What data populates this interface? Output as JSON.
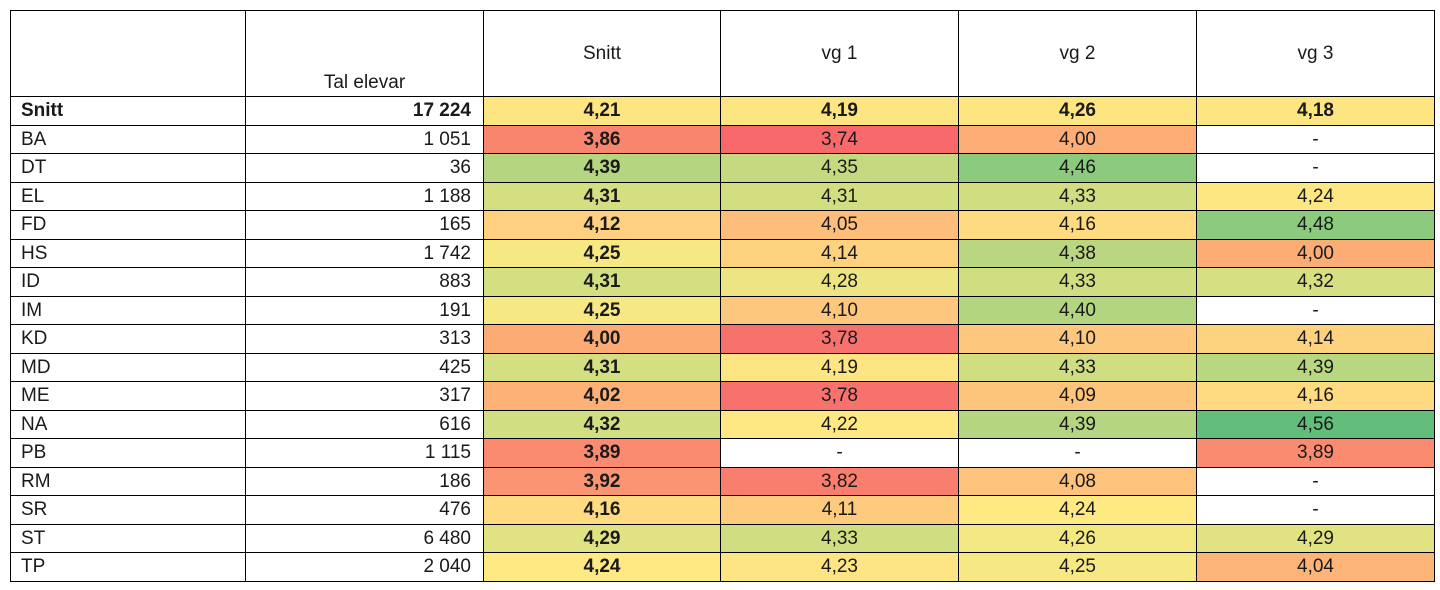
{
  "chart_data": {
    "type": "table",
    "columns": [
      "",
      "Tal elevar",
      "Snitt",
      "vg 1",
      "vg 2",
      "vg 3"
    ],
    "rows": [
      {
        "label": "Snitt",
        "count": "17 224",
        "values": [
          "4,21",
          "4,19",
          "4,26",
          "4,18"
        ],
        "colors": [
          "#fde582",
          "#fde582",
          "#fde582",
          "#fde582"
        ]
      },
      {
        "label": "BA",
        "count": "1 051",
        "values": [
          "3,86",
          "3,74",
          "4,00",
          "-"
        ],
        "colors": [
          "#f9856f",
          "#f8696b",
          "#fdad75",
          "#ffffff"
        ]
      },
      {
        "label": "DT",
        "count": "36",
        "values": [
          "4,39",
          "4,35",
          "4,46",
          "-"
        ],
        "colors": [
          "#b5d580",
          "#c5da80",
          "#8cca7e",
          "#ffffff"
        ]
      },
      {
        "label": "EL",
        "count": "1 188",
        "values": [
          "4,31",
          "4,31",
          "4,33",
          "4,24"
        ],
        "colors": [
          "#d5df81",
          "#d3de81",
          "#d0dd81",
          "#fde783"
        ]
      },
      {
        "label": "FD",
        "count": "165",
        "values": [
          "4,12",
          "4,05",
          "4,16",
          "4,48"
        ],
        "colors": [
          "#fed07f",
          "#fdbd7b",
          "#fedb81",
          "#8ccb7e"
        ]
      },
      {
        "label": "HS",
        "count": "1 742",
        "values": [
          "4,25",
          "4,14",
          "4,38",
          "4,00"
        ],
        "colors": [
          "#f6e883",
          "#fdd27f",
          "#b9d680",
          "#fcad75"
        ]
      },
      {
        "label": "ID",
        "count": "883",
        "values": [
          "4,31",
          "4,28",
          "4,33",
          "4,32"
        ],
        "colors": [
          "#d4df81",
          "#ede583",
          "#d0dd81",
          "#d6df81"
        ]
      },
      {
        "label": "IM",
        "count": "191",
        "values": [
          "4,25",
          "4,10",
          "4,40",
          "-"
        ],
        "colors": [
          "#f6e883",
          "#fdc77d",
          "#b3d580",
          "#ffffff"
        ]
      },
      {
        "label": "KD",
        "count": "313",
        "values": [
          "4,00",
          "3,78",
          "4,10",
          "4,14"
        ],
        "colors": [
          "#fcab75",
          "#f8726d",
          "#fdc77d",
          "#fdd27f"
        ]
      },
      {
        "label": "MD",
        "count": "425",
        "values": [
          "4,31",
          "4,19",
          "4,33",
          "4,39"
        ],
        "colors": [
          "#d4df81",
          "#fde583",
          "#d0dd81",
          "#b9d680"
        ]
      },
      {
        "label": "ME",
        "count": "317",
        "values": [
          "4,02",
          "3,78",
          "4,09",
          "4,16"
        ],
        "colors": [
          "#fcb277",
          "#f8726d",
          "#fdc47c",
          "#fedb81"
        ]
      },
      {
        "label": "NA",
        "count": "616",
        "values": [
          "4,32",
          "4,22",
          "4,39",
          "4,56"
        ],
        "colors": [
          "#d1de81",
          "#fde883",
          "#b5d580",
          "#63be7b"
        ]
      },
      {
        "label": "PB",
        "count": "1 115",
        "values": [
          "3,89",
          "-",
          "-",
          "3,89"
        ],
        "colors": [
          "#fa8b71",
          "#ffffff",
          "#ffffff",
          "#fa8b71"
        ]
      },
      {
        "label": "RM",
        "count": "186",
        "values": [
          "3,92",
          "3,82",
          "4,08",
          "-"
        ],
        "colors": [
          "#fb9472",
          "#f97e6e",
          "#fdc27b",
          "#ffffff"
        ]
      },
      {
        "label": "SR",
        "count": "476",
        "values": [
          "4,16",
          "4,11",
          "4,24",
          "-"
        ],
        "colors": [
          "#fedb81",
          "#fdca7e",
          "#fee983",
          "#ffffff"
        ]
      },
      {
        "label": "ST",
        "count": "6 480",
        "values": [
          "4,29",
          "4,33",
          "4,26",
          "4,29"
        ],
        "colors": [
          "#e1e282",
          "#d0dd81",
          "#f4e883",
          "#e1e282"
        ]
      },
      {
        "label": "TP",
        "count": "2 040",
        "values": [
          "4,24",
          "4,23",
          "4,25",
          "4,04"
        ],
        "colors": [
          "#fee983",
          "#fee583",
          "#f6e883",
          "#fcb577"
        ]
      }
    ]
  }
}
